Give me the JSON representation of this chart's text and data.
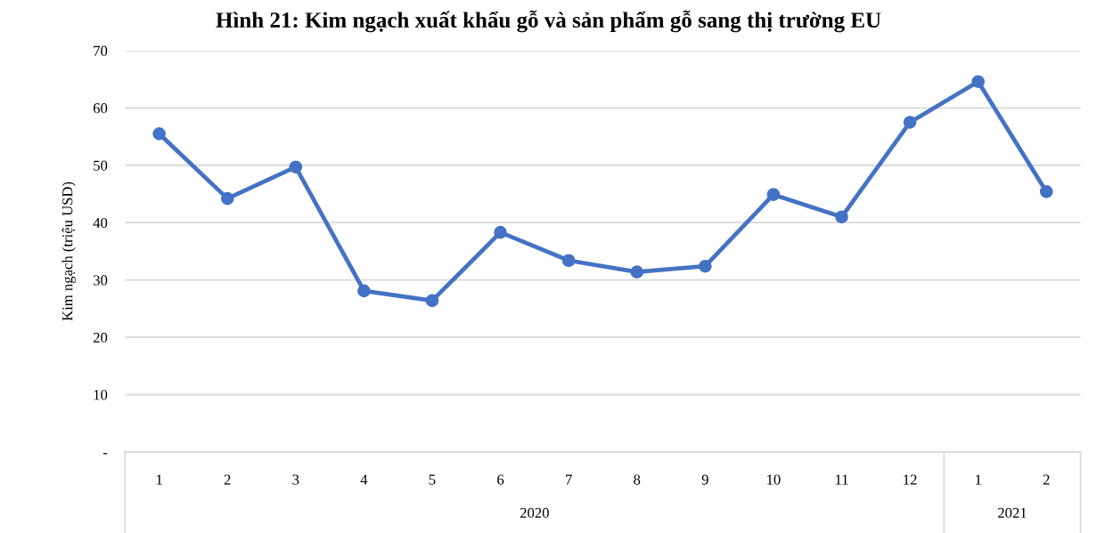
{
  "chart_data": {
    "type": "line",
    "title": "Hình 21: Kim ngạch xuất khẩu gỗ và sản phẩm gỗ sang thị trường EU",
    "ylabel": "Kim ngạch (triệu USD)",
    "categories": [
      "1",
      "2",
      "3",
      "4",
      "5",
      "6",
      "7",
      "8",
      "9",
      "10",
      "11",
      "12",
      "1",
      "2"
    ],
    "values": [
      55.5,
      44.2,
      49.7,
      28.1,
      26.4,
      38.3,
      33.4,
      31.4,
      32.4,
      44.9,
      41.0,
      57.5,
      64.6,
      45.4
    ],
    "color": "#4472c4",
    "ylim": [
      0,
      70
    ],
    "yticks": [
      {
        "value": 0,
        "label": "-"
      },
      10,
      20,
      30,
      40,
      50,
      60,
      70
    ],
    "annotations": [
      "2020",
      "2021"
    ],
    "grid": "y",
    "marker": "circle",
    "line_style": "solid",
    "legend": false
  }
}
